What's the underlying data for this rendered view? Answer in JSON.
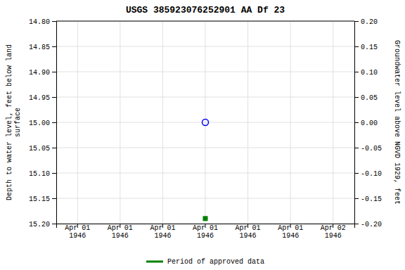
{
  "chart_data": {
    "type": "scatter",
    "title": "USGS 385923076252901 AA Df  23",
    "y_label": "Depth to water level, feet below land\nsurface",
    "y2_label": "Groundwater level above NGVD 1929, feet",
    "categories": [
      "Apr 01\n1946",
      "Apr 01\n1946",
      "Apr 01\n1946",
      "Apr 01\n1946",
      "Apr 01\n1946",
      "Apr 01\n1946",
      "Apr 02\n1946"
    ],
    "series": [
      {
        "color": "blue",
        "marker": "open-circle",
        "values": [
          null,
          null,
          null,
          15.0,
          null,
          null,
          null
        ]
      },
      {
        "name": "Period of approved data",
        "color": "#008000",
        "marker": "square",
        "values": [
          null,
          null,
          null,
          15.19,
          null,
          null,
          null
        ]
      }
    ],
    "ylim": [
      15.2,
      14.8
    ],
    "yticks": [
      {
        "value": 14.8,
        "label": "14.80"
      },
      14.85,
      {
        "value": 14.9,
        "label": "14.90"
      },
      14.95,
      {
        "value": 15.0,
        "label": "15.00"
      },
      15.05,
      {
        "value": 15.1,
        "label": "15.10"
      },
      15.15,
      {
        "value": 15.2,
        "label": "15.20"
      }
    ],
    "y2lim": [
      -0.2,
      0.2
    ],
    "y2ticks": [
      {
        "value": 0.2,
        "label": "0.20"
      },
      0.15,
      {
        "value": 0.1,
        "label": "0.10"
      },
      0.05,
      {
        "value": 0.0,
        "label": "0.00"
      },
      -0.05,
      {
        "value": -0.1,
        "label": "-0.10"
      },
      -0.15,
      {
        "value": -0.2,
        "label": "-0.20"
      }
    ],
    "grid": true,
    "legend": "bottom"
  }
}
